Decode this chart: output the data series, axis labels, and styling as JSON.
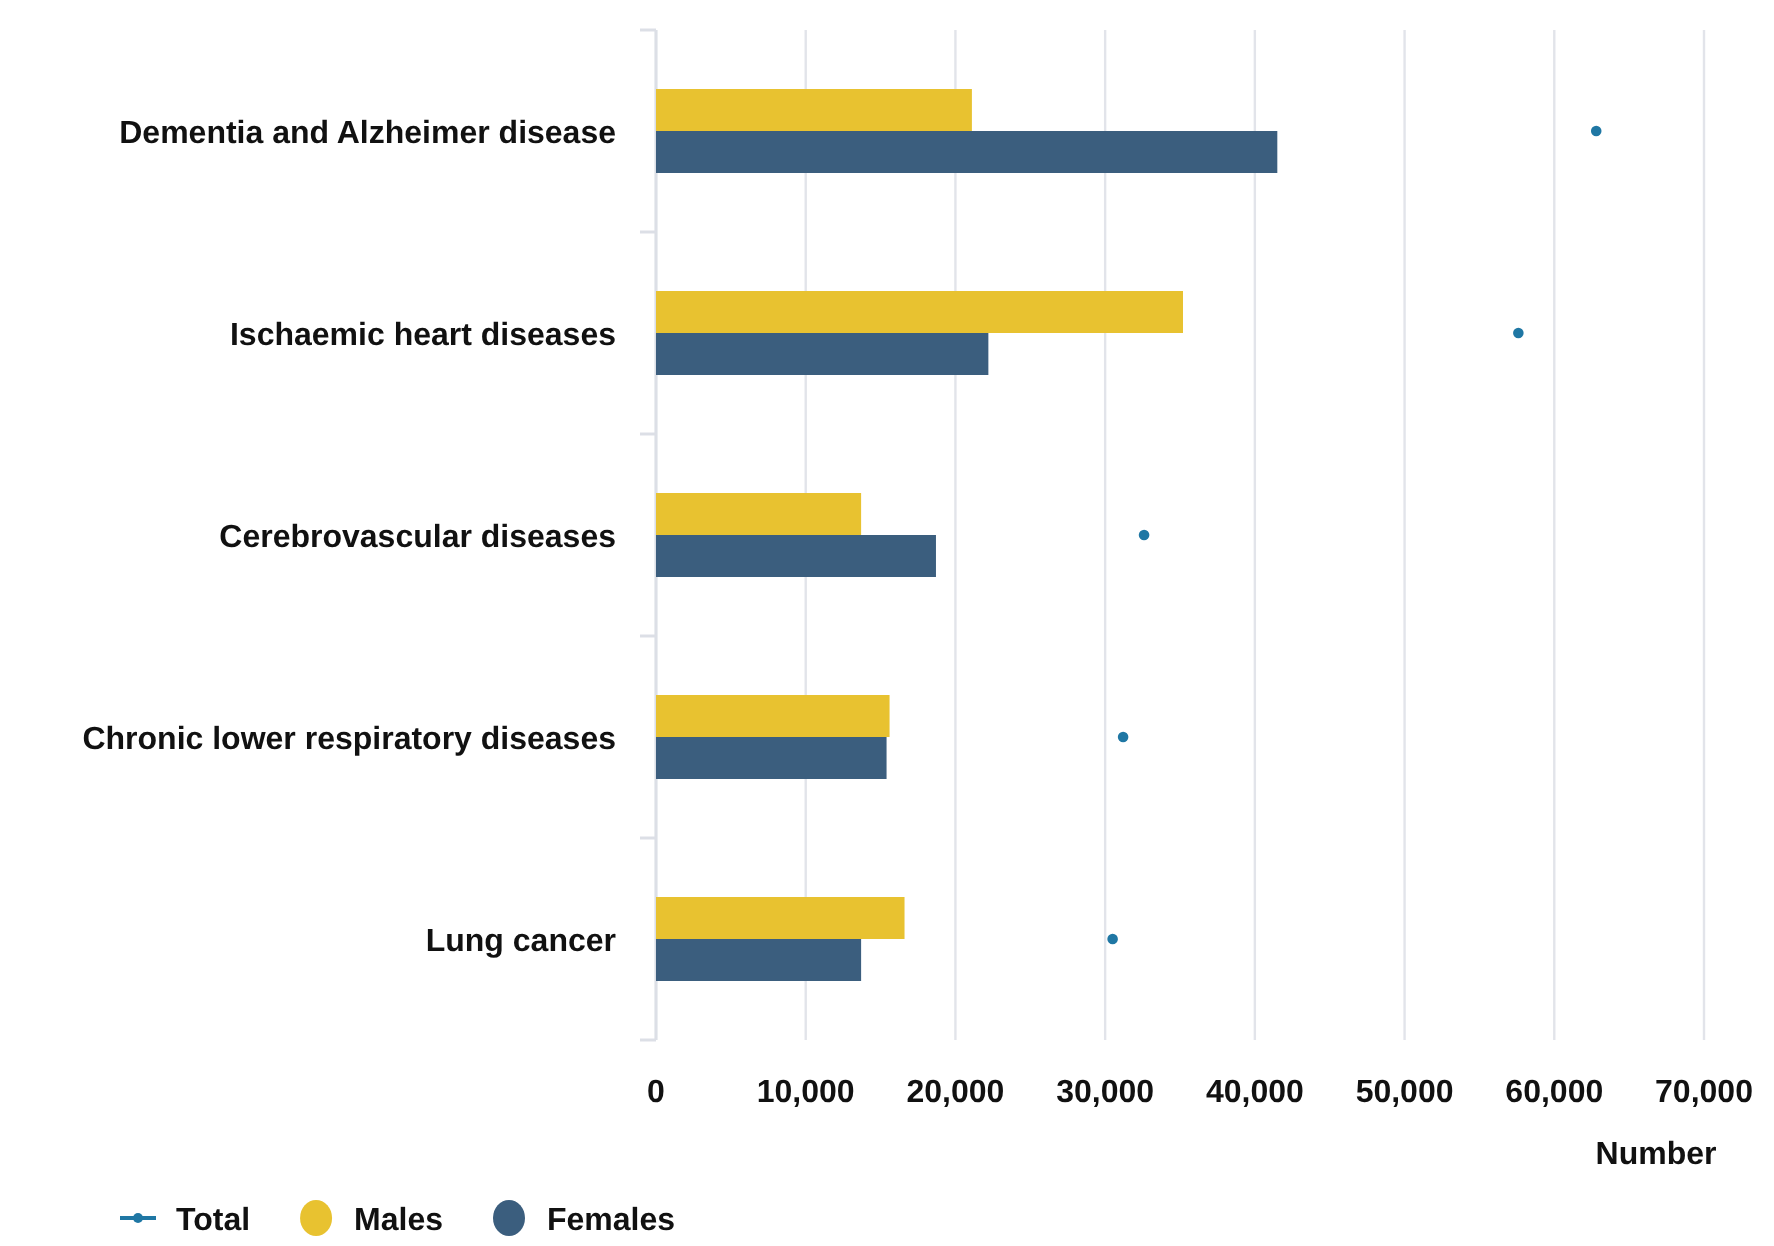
{
  "chart_data": {
    "type": "bar",
    "orientation": "horizontal",
    "xlabel": "Number",
    "categories": [
      "Dementia and Alzheimer disease",
      "Ischaemic heart diseases",
      "Cerebrovascular diseases",
      "Chronic lower respiratory diseases",
      "Lung cancer"
    ],
    "series": [
      {
        "name": "Total",
        "type": "scatter",
        "color": "#1f77a4",
        "marker": "circle",
        "x": [
          "Dementia and Alzheimer disease",
          "Ischaemic heart diseases",
          "Cerebrovascular diseases",
          "Chronic lower respiratory diseases",
          "Lung cancer"
        ],
        "values": [
          62800,
          57600,
          32600,
          31200,
          30500
        ]
      },
      {
        "name": "Males",
        "color": "#e8c230",
        "values": [
          21100,
          35200,
          13700,
          15600,
          16600
        ]
      },
      {
        "name": "Females",
        "color": "#3b5e7e",
        "values": [
          41500,
          22200,
          18700,
          15400,
          13700
        ]
      }
    ],
    "xlim": [
      0,
      70000
    ],
    "xticks": [
      {
        "value": 0,
        "label": "0"
      },
      {
        "value": 10000,
        "label": "10,000"
      },
      {
        "value": 20000,
        "label": "20,000"
      },
      {
        "value": 30000,
        "label": "30,000"
      },
      {
        "value": 40000,
        "label": "40,000"
      },
      {
        "value": 50000,
        "label": "50,000"
      },
      {
        "value": 60000,
        "label": "60,000"
      },
      {
        "value": 70000,
        "label": "70,000"
      }
    ],
    "grid": "x",
    "legend": "bottom left"
  }
}
